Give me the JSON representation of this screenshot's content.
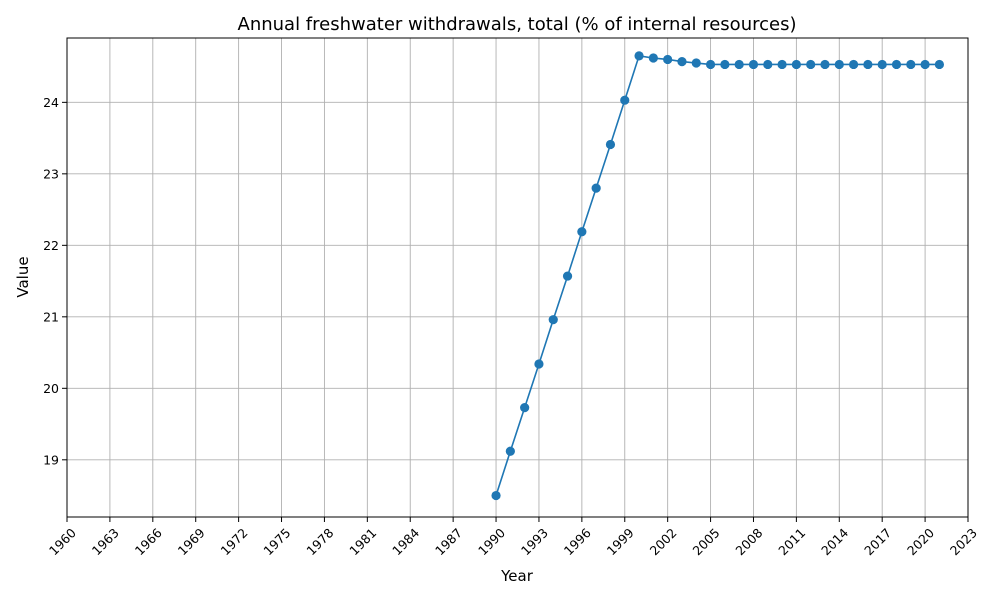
{
  "chart_data": {
    "type": "line",
    "title": "Annual freshwater withdrawals, total (% of internal resources)",
    "xlabel": "Year",
    "ylabel": "Value",
    "xlim": [
      1960,
      2023
    ],
    "ylim": [
      18.2,
      24.9
    ],
    "grid": true,
    "series_color": "#1f77b4",
    "xticks": [
      1960,
      1963,
      1966,
      1969,
      1972,
      1975,
      1978,
      1981,
      1984,
      1987,
      1990,
      1993,
      1996,
      1999,
      2002,
      2005,
      2008,
      2011,
      2014,
      2017,
      2020,
      2023
    ],
    "yticks": [
      19,
      20,
      21,
      22,
      23,
      24
    ],
    "series": [
      {
        "x": [
          1990,
          1991,
          1992,
          1993,
          1994,
          1995,
          1996,
          1997,
          1998,
          1999,
          2000,
          2001,
          2002,
          2003,
          2004,
          2005,
          2006,
          2007,
          2008,
          2009,
          2010,
          2011,
          2012,
          2013,
          2014,
          2015,
          2016,
          2017,
          2018,
          2019,
          2020,
          2021
        ],
        "values": [
          18.5,
          19.12,
          19.73,
          20.34,
          20.96,
          21.57,
          22.19,
          22.8,
          23.41,
          24.03,
          24.65,
          24.62,
          24.6,
          24.57,
          24.55,
          24.53,
          24.53,
          24.53,
          24.53,
          24.53,
          24.53,
          24.53,
          24.53,
          24.53,
          24.53,
          24.53,
          24.53,
          24.53,
          24.53,
          24.53,
          24.53,
          24.53
        ]
      }
    ]
  }
}
